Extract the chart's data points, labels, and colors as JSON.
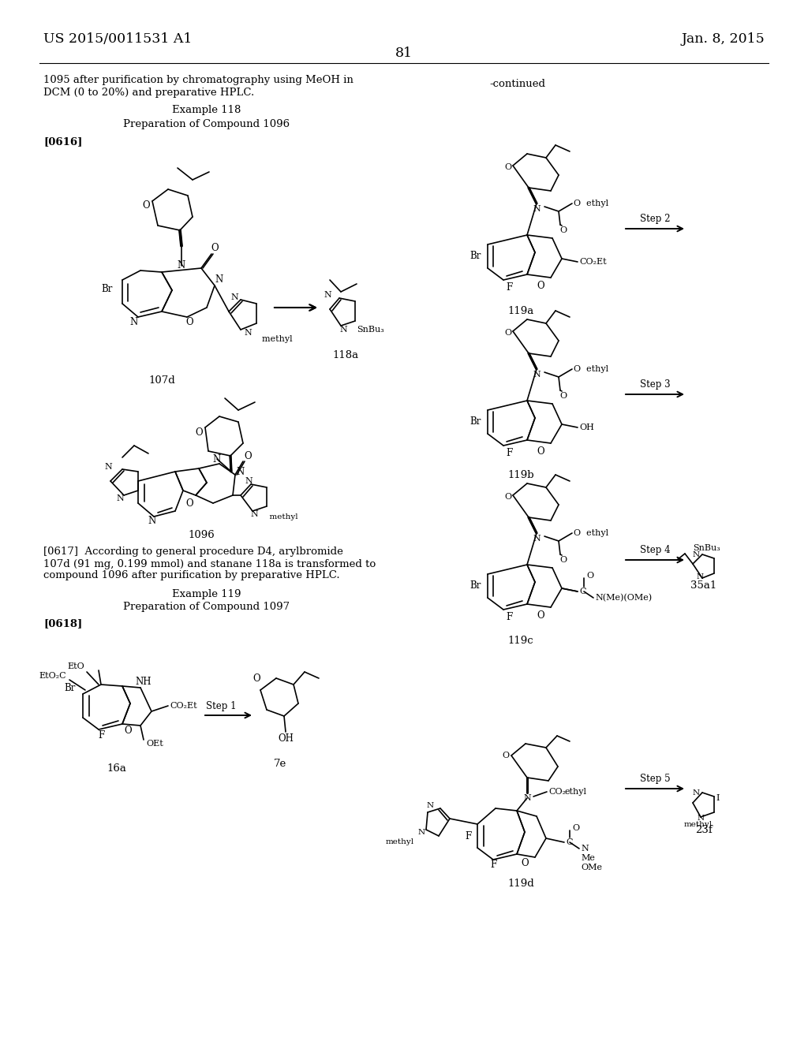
{
  "bg": "#ffffff",
  "page_num": "81",
  "hdr_left": "US 2015/0011531 A1",
  "hdr_right": "Jan. 8, 2015",
  "continued": "-continued",
  "intro1": "1095 after purification by chromatography using MeOH in",
  "intro2": "DCM (0 to 20%) and preparative HPLC.",
  "ex118": "Example 118",
  "prep1096": "Preparation of Compound 1096",
  "p616": "[0616]",
  "p617a": "[0617]  According to general procedure D4, arylbromide",
  "p617b": "107d (91 mg, 0.199 mmol) and stanane 118a is transformed to",
  "p617c": "compound 1096 after purification by preparative HPLC.",
  "ex119": "Example 119",
  "prep1097": "Preparation of Compound 1097",
  "p618": "[0618]",
  "lbl_107d": "107d",
  "lbl_118a": "118a",
  "lbl_1096": "1096",
  "lbl_16a": "16a",
  "lbl_7e": "7e",
  "lbl_119a": "119a",
  "lbl_119b": "119b",
  "lbl_119c": "119c",
  "lbl_119d": "119d",
  "lbl_35a1": "35a1",
  "lbl_23f": "23f",
  "step2": "Step 2",
  "step3": "Step 3",
  "step4": "Step 4",
  "step5": "Step 5",
  "step1": "Step 1",
  "snbu3": "SnBu₃",
  "black": "#000000",
  "lw": 1.2
}
